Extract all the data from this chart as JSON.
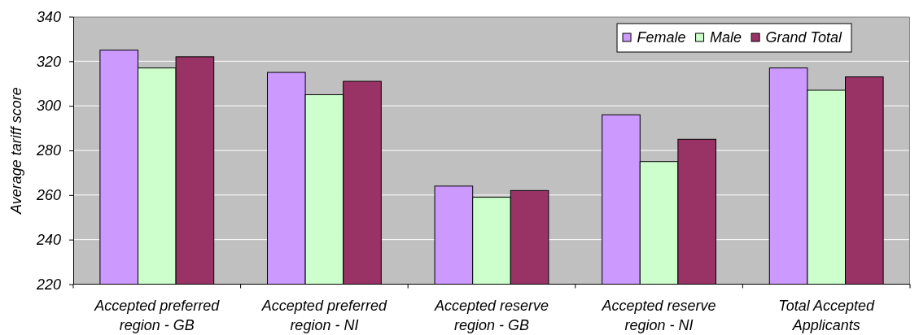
{
  "chart_data": {
    "type": "bar",
    "ylabel": "Average tariff score",
    "categories": [
      "Accepted preferred region - GB",
      "Accepted preferred region - NI",
      "Accepted reserve region - GB",
      "Accepted reserve region - NI",
      "Total Accepted Applicants"
    ],
    "series": [
      {
        "name": "Female",
        "color": "#cc99ff",
        "values": [
          325,
          315,
          264,
          296,
          317
        ]
      },
      {
        "name": "Male",
        "color": "#ccffcc",
        "values": [
          317,
          305,
          259,
          275,
          307
        ]
      },
      {
        "name": "Grand Total",
        "color": "#993366",
        "values": [
          322,
          311,
          262,
          285,
          313
        ]
      }
    ],
    "ylim": [
      220,
      340
    ],
    "yticks": [
      220,
      240,
      260,
      280,
      300,
      320,
      340
    ],
    "grid": "y",
    "legend": "top right"
  }
}
